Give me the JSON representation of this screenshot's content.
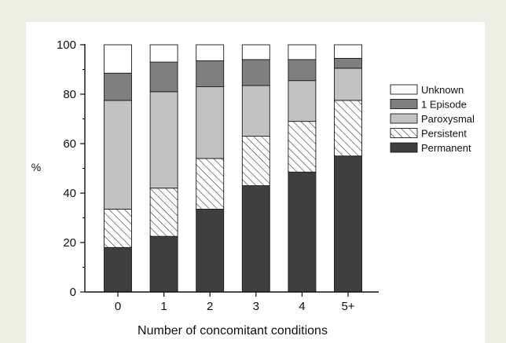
{
  "chart_data": {
    "type": "bar",
    "stacked": true,
    "xlabel": "Number of concomitant conditions",
    "ylabel": "%",
    "ylim": [
      0,
      100
    ],
    "yticks": [
      0,
      20,
      40,
      60,
      80,
      100
    ],
    "grid": false,
    "legend_position": "right",
    "categories": [
      "0",
      "1",
      "2",
      "3",
      "4",
      "5+"
    ],
    "series": [
      {
        "name": "Permanent",
        "fill": "solid",
        "color": "#3f3f3f",
        "values": [
          18,
          22.5,
          33.5,
          43,
          48.5,
          55
        ]
      },
      {
        "name": "Persistent",
        "fill": "hatched",
        "color": "#ffffff",
        "values": [
          15.5,
          19.5,
          20.5,
          20,
          20.5,
          22.5
        ]
      },
      {
        "name": "Paroxysmal",
        "fill": "solid",
        "color": "#c2c2c2",
        "values": [
          44,
          39,
          29,
          20.5,
          16.5,
          13
        ]
      },
      {
        "name": "1 Episode",
        "fill": "solid",
        "color": "#7f7f7f",
        "values": [
          11,
          12,
          10.5,
          10.5,
          8.5,
          4
        ]
      },
      {
        "name": "Unknown",
        "fill": "solid",
        "color": "#ffffff",
        "values": [
          11.5,
          7,
          6.5,
          6,
          6,
          5.5
        ]
      }
    ],
    "legend_order": [
      "Unknown",
      "1 Episode",
      "Paroxysmal",
      "Persistent",
      "Permanent"
    ]
  },
  "colors": {
    "page_background": "#efeee2",
    "panel_background": "#ffffff",
    "axis": "#111111",
    "bar_outline": "#1a1a1a"
  }
}
